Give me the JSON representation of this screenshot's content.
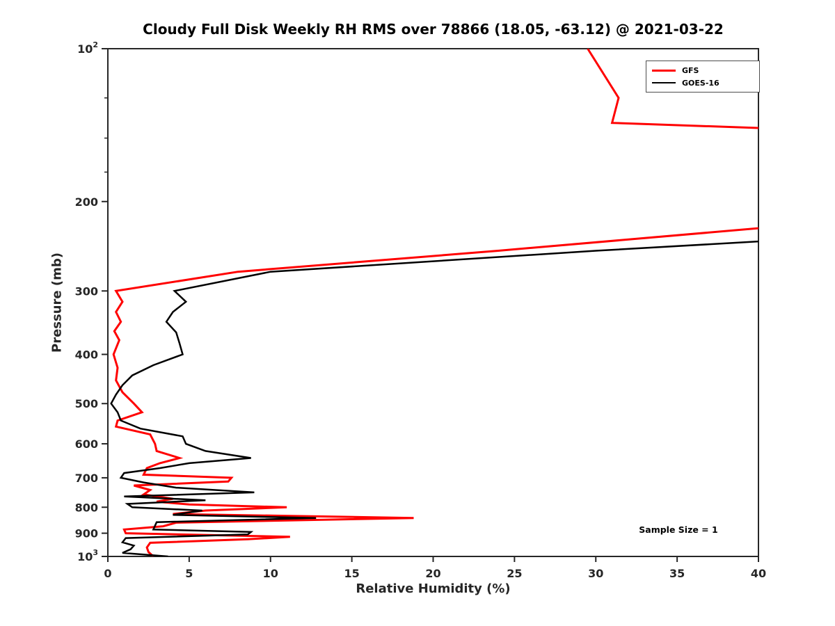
{
  "chart_data": {
    "type": "line",
    "title": "Cloudy Full Disk Weekly RH RMS over 78866 (18.05, -63.12) @ 2021-03-22",
    "xlabel": "Relative Humidity (%)",
    "ylabel": "Pressure (mb)",
    "annotation": "Sample Size = 1",
    "xlim": [
      0,
      40
    ],
    "pressure_lim": [
      100,
      1000
    ],
    "yscale": "log",
    "ydir": "reverse",
    "grid": false,
    "axis_color": "#262626",
    "xticks": [
      0,
      5,
      10,
      15,
      20,
      25,
      30,
      35,
      40
    ],
    "yticks": [
      {
        "value": 100,
        "label": "10^2"
      },
      {
        "value": 200,
        "label": "200"
      },
      {
        "value": 300,
        "label": "300"
      },
      {
        "value": 400,
        "label": "400"
      },
      {
        "value": 500,
        "label": "500"
      },
      {
        "value": 600,
        "label": "600"
      },
      {
        "value": 700,
        "label": "700"
      },
      {
        "value": 800,
        "label": "800"
      },
      {
        "value": 900,
        "label": "900"
      },
      {
        "value": 1000,
        "label": "10^3"
      }
    ],
    "y_minor_ticks": [
      125,
      150,
      175
    ],
    "legend": {
      "position": "northeast",
      "entries": [
        {
          "label": "GFS",
          "color": "#ff0000",
          "line_width": 3
        },
        {
          "label": "GOES-16",
          "color": "#000000",
          "line_width": 2.5
        }
      ]
    },
    "series": [
      {
        "name": "GFS",
        "color": "#ff0000",
        "line_width": 3,
        "points": [
          [
            100,
            29.5
          ],
          [
            125,
            31.4
          ],
          [
            140,
            31.0
          ],
          [
            150,
            58
          ],
          [
            175,
            60
          ],
          [
            200,
            55
          ],
          [
            225,
            40.5
          ],
          [
            250,
            24
          ],
          [
            275,
            8
          ],
          [
            300,
            0.5
          ],
          [
            315,
            0.9
          ],
          [
            330,
            0.5
          ],
          [
            345,
            0.8
          ],
          [
            360,
            0.4
          ],
          [
            375,
            0.7
          ],
          [
            400,
            0.35
          ],
          [
            425,
            0.6
          ],
          [
            450,
            0.5
          ],
          [
            475,
            0.9
          ],
          [
            500,
            1.6
          ],
          [
            520,
            2.1
          ],
          [
            540,
            0.6
          ],
          [
            555,
            0.5
          ],
          [
            575,
            2.6
          ],
          [
            600,
            2.9
          ],
          [
            620,
            3.0
          ],
          [
            640,
            4.4
          ],
          [
            655,
            3.2
          ],
          [
            670,
            2.4
          ],
          [
            690,
            2.2
          ],
          [
            700,
            7.6
          ],
          [
            712,
            7.4
          ],
          [
            725,
            1.6
          ],
          [
            740,
            2.6
          ],
          [
            755,
            2.2
          ],
          [
            770,
            4.0
          ],
          [
            780,
            3.0
          ],
          [
            790,
            5.0
          ],
          [
            800,
            11.0
          ],
          [
            812,
            6.0
          ],
          [
            825,
            4.0
          ],
          [
            840,
            18.8
          ],
          [
            858,
            4.2
          ],
          [
            872,
            3.4
          ],
          [
            885,
            1.0
          ],
          [
            900,
            1.1
          ],
          [
            915,
            11.2
          ],
          [
            925,
            8.6
          ],
          [
            940,
            2.6
          ],
          [
            960,
            2.4
          ],
          [
            980,
            2.5
          ],
          [
            1000,
            2.8
          ]
        ]
      },
      {
        "name": "GOES-16",
        "color": "#000000",
        "line_width": 2.5,
        "points": [
          [
            225,
            55
          ],
          [
            250,
            30
          ],
          [
            275,
            10
          ],
          [
            300,
            4.1
          ],
          [
            315,
            4.8
          ],
          [
            330,
            4.0
          ],
          [
            345,
            3.6
          ],
          [
            362,
            4.2
          ],
          [
            380,
            4.4
          ],
          [
            400,
            4.6
          ],
          [
            420,
            2.8
          ],
          [
            440,
            1.5
          ],
          [
            460,
            0.9
          ],
          [
            480,
            0.5
          ],
          [
            500,
            0.2
          ],
          [
            520,
            0.6
          ],
          [
            540,
            0.8
          ],
          [
            560,
            2.0
          ],
          [
            580,
            4.6
          ],
          [
            600,
            4.8
          ],
          [
            620,
            6.0
          ],
          [
            640,
            8.8
          ],
          [
            655,
            5.0
          ],
          [
            670,
            3.2
          ],
          [
            685,
            1.0
          ],
          [
            700,
            0.8
          ],
          [
            715,
            2.2
          ],
          [
            732,
            4.2
          ],
          [
            748,
            9.0
          ],
          [
            762,
            1.0
          ],
          [
            775,
            6.0
          ],
          [
            788,
            1.2
          ],
          [
            800,
            1.5
          ],
          [
            812,
            5.8
          ],
          [
            828,
            4.0
          ],
          [
            840,
            12.8
          ],
          [
            856,
            3.0
          ],
          [
            870,
            2.9
          ],
          [
            885,
            2.8
          ],
          [
            895,
            8.8
          ],
          [
            905,
            8.6
          ],
          [
            920,
            1.1
          ],
          [
            938,
            0.9
          ],
          [
            952,
            1.6
          ],
          [
            968,
            1.4
          ],
          [
            984,
            0.9
          ],
          [
            1000,
            3.7
          ]
        ]
      }
    ]
  }
}
